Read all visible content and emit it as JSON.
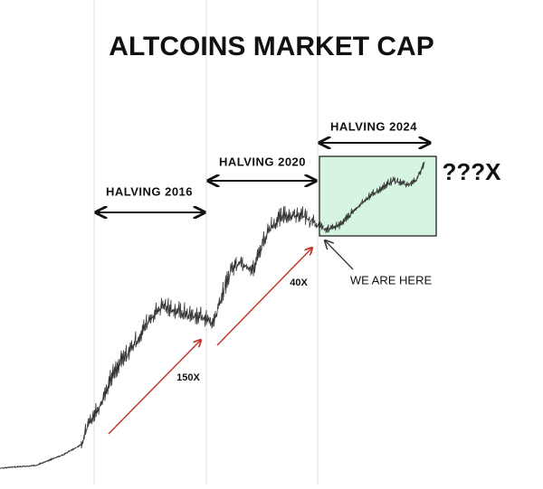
{
  "title": "ALTCOINS MARKET CAP",
  "halvings": [
    {
      "label": "HALVING 2016"
    },
    {
      "label": "HALVING 2020"
    },
    {
      "label": "HALVING 2024"
    }
  ],
  "projection": "???X",
  "marker": "WE ARE HERE",
  "gains": [
    {
      "label": "150X"
    },
    {
      "label": "40X"
    }
  ]
}
